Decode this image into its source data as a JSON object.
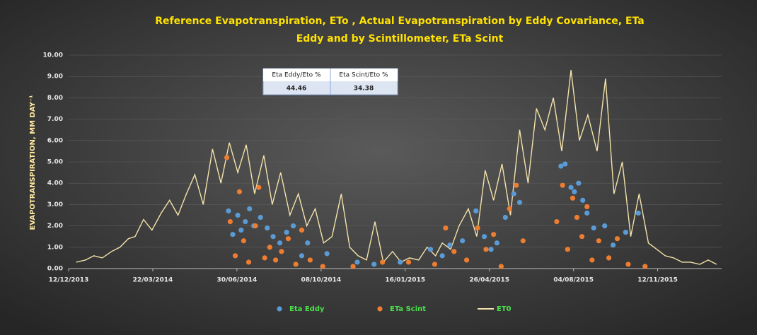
{
  "chart_data": {
    "type": "combo",
    "title": [
      "Reference Evapotranspiration, ETo , Actual Evapotranspiration by Eddy Covariance, ETa",
      "Eddy and by Scintillometer, ETa Scint"
    ],
    "ylabel": "EVAPOTRANSPIRATION, MM DAY⁻¹",
    "xlim": [
      "2013-12-12",
      "2016-01-27"
    ],
    "xticks": [
      {
        "value": "2013-12-12",
        "label": "12/12/2013"
      },
      {
        "value": "2014-03-22",
        "label": "22/03/2014"
      },
      {
        "value": "2014-06-30",
        "label": "30/06/2014"
      },
      {
        "value": "2014-10-08",
        "label": "08/10/2014"
      },
      {
        "value": "2015-01-16",
        "label": "16/01/2015"
      },
      {
        "value": "2015-04-26",
        "label": "26/04/2015"
      },
      {
        "value": "2015-08-04",
        "label": "04/08/2015"
      },
      {
        "value": "2015-11-12",
        "label": "12/11/2015"
      }
    ],
    "ylim": [
      0,
      10
    ],
    "yticks": [
      {
        "value": 0,
        "label": "0.00"
      },
      {
        "value": 1,
        "label": "1.00"
      },
      {
        "value": 2,
        "label": "2.00"
      },
      {
        "value": 3,
        "label": "3.00"
      },
      {
        "value": 4,
        "label": "4.00"
      },
      {
        "value": 5,
        "label": "5.00"
      },
      {
        "value": 6,
        "label": "6.00"
      },
      {
        "value": 7,
        "label": "7.00"
      },
      {
        "value": 8,
        "label": "8.00"
      },
      {
        "value": 9,
        "label": "9.00"
      },
      {
        "value": 10,
        "label": "10.00"
      }
    ],
    "grid": true,
    "table": {
      "headers": [
        "Eta Eddy/Eto %",
        "Eta Scint/Eto %"
      ],
      "values": [
        44.46,
        34.38
      ]
    },
    "series": [
      {
        "name": "Eta Eddy",
        "type": "scatter",
        "color": "#5b9bd5",
        "x": [
          "2014-06-20",
          "2014-06-25",
          "2014-07-01",
          "2014-07-05",
          "2014-07-10",
          "2014-07-15",
          "2014-07-20",
          "2014-07-28",
          "2014-08-05",
          "2014-08-12",
          "2014-08-20",
          "2014-08-28",
          "2014-09-05",
          "2014-09-15",
          "2014-09-22",
          "2014-10-15",
          "2014-11-20",
          "2014-12-10",
          "2015-01-10",
          "2015-02-15",
          "2015-03-01",
          "2015-03-10",
          "2015-03-25",
          "2015-04-10",
          "2015-04-20",
          "2015-04-28",
          "2015-05-05",
          "2015-05-15",
          "2015-05-25",
          "2015-06-01",
          "2015-07-20",
          "2015-07-25",
          "2015-08-01",
          "2015-08-05",
          "2015-08-10",
          "2015-08-15",
          "2015-08-20",
          "2015-08-28",
          "2015-09-10",
          "2015-09-20",
          "2015-10-05",
          "2015-10-20"
        ],
        "values": [
          2.7,
          1.6,
          2.5,
          1.8,
          2.2,
          2.8,
          2.0,
          2.4,
          1.9,
          1.5,
          1.2,
          1.7,
          2.0,
          0.6,
          1.2,
          0.7,
          0.3,
          0.2,
          0.3,
          0.9,
          0.6,
          1.1,
          1.3,
          2.7,
          1.5,
          0.9,
          1.2,
          2.4,
          3.5,
          3.1,
          4.8,
          4.9,
          3.8,
          3.6,
          4.0,
          3.2,
          2.6,
          1.9,
          2.0,
          1.1,
          1.7,
          2.6
        ]
      },
      {
        "name": "ETa Scint",
        "type": "scatter",
        "color": "#ed7d31",
        "x": [
          "2014-06-18",
          "2014-06-22",
          "2014-06-28",
          "2014-07-03",
          "2014-07-08",
          "2014-07-14",
          "2014-07-22",
          "2014-07-26",
          "2014-08-02",
          "2014-08-08",
          "2014-08-15",
          "2014-08-22",
          "2014-08-30",
          "2014-09-08",
          "2014-09-15",
          "2014-09-25",
          "2014-10-10",
          "2014-11-15",
          "2014-12-20",
          "2015-01-20",
          "2015-02-20",
          "2015-03-05",
          "2015-03-15",
          "2015-03-30",
          "2015-04-12",
          "2015-04-22",
          "2015-05-01",
          "2015-05-10",
          "2015-05-20",
          "2015-05-28",
          "2015-06-05",
          "2015-07-15",
          "2015-07-22",
          "2015-07-28",
          "2015-08-03",
          "2015-08-08",
          "2015-08-14",
          "2015-08-20",
          "2015-08-26",
          "2015-09-03",
          "2015-09-15",
          "2015-09-25",
          "2015-10-08",
          "2015-10-28"
        ],
        "values": [
          5.2,
          2.2,
          0.6,
          3.6,
          1.3,
          0.3,
          2.0,
          3.8,
          0.5,
          1.0,
          0.4,
          0.8,
          1.4,
          0.2,
          1.8,
          0.4,
          0.1,
          0.1,
          0.3,
          0.3,
          0.2,
          1.9,
          0.8,
          0.4,
          1.9,
          0.9,
          1.6,
          0.1,
          2.8,
          3.9,
          1.3,
          2.2,
          3.9,
          0.9,
          3.3,
          2.4,
          1.5,
          2.9,
          0.4,
          1.3,
          0.5,
          1.4,
          0.2,
          0.1
        ]
      },
      {
        "name": "ET0",
        "type": "line",
        "color": "#f3e2a9",
        "x": [
          "2013-12-21",
          "2014-01-01",
          "2014-01-11",
          "2014-01-21",
          "2014-02-01",
          "2014-02-11",
          "2014-02-21",
          "2014-03-01",
          "2014-03-11",
          "2014-03-21",
          "2014-04-01",
          "2014-04-11",
          "2014-04-21",
          "2014-05-01",
          "2014-05-11",
          "2014-05-21",
          "2014-06-01",
          "2014-06-11",
          "2014-06-21",
          "2014-07-01",
          "2014-07-11",
          "2014-07-21",
          "2014-08-01",
          "2014-08-11",
          "2014-08-21",
          "2014-09-01",
          "2014-09-11",
          "2014-09-21",
          "2014-10-01",
          "2014-10-11",
          "2014-10-21",
          "2014-11-01",
          "2014-11-11",
          "2014-11-21",
          "2014-12-01",
          "2014-12-11",
          "2014-12-21",
          "2015-01-01",
          "2015-01-11",
          "2015-01-21",
          "2015-02-01",
          "2015-02-11",
          "2015-02-21",
          "2015-03-01",
          "2015-03-11",
          "2015-03-21",
          "2015-04-01",
          "2015-04-11",
          "2015-04-21",
          "2015-05-01",
          "2015-05-11",
          "2015-05-21",
          "2015-06-01",
          "2015-06-11",
          "2015-06-21",
          "2015-07-01",
          "2015-07-11",
          "2015-07-21",
          "2015-08-01",
          "2015-08-11",
          "2015-08-21",
          "2015-09-01",
          "2015-09-11",
          "2015-09-21",
          "2015-10-01",
          "2015-10-11",
          "2015-10-21",
          "2015-11-01",
          "2015-11-11",
          "2015-11-21",
          "2015-12-01",
          "2015-12-11",
          "2015-12-21",
          "2016-01-01",
          "2016-01-11",
          "2016-01-21"
        ],
        "values": [
          0.3,
          0.4,
          0.6,
          0.5,
          0.8,
          1.0,
          1.4,
          1.5,
          2.3,
          1.8,
          2.6,
          3.2,
          2.5,
          3.5,
          4.4,
          3.0,
          5.6,
          4.0,
          5.9,
          4.5,
          5.8,
          3.5,
          5.3,
          3.0,
          4.5,
          2.5,
          3.5,
          2.0,
          2.8,
          1.2,
          1.5,
          3.5,
          1.0,
          0.6,
          0.4,
          2.2,
          0.3,
          0.8,
          0.3,
          0.5,
          0.4,
          1.0,
          0.6,
          1.2,
          0.9,
          2.0,
          2.8,
          1.5,
          4.6,
          3.2,
          4.9,
          2.5,
          6.5,
          4.0,
          7.5,
          6.5,
          8.0,
          5.5,
          9.3,
          6.0,
          7.2,
          5.5,
          8.9,
          3.5,
          5.0,
          1.5,
          3.5,
          1.2,
          0.9,
          0.6,
          0.5,
          0.3,
          0.3,
          0.2,
          0.4,
          0.2
        ]
      }
    ]
  }
}
